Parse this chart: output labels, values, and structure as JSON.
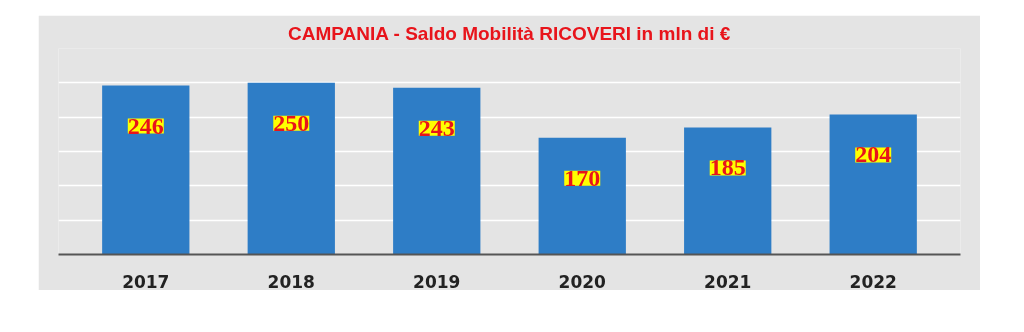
{
  "chart_data": {
    "type": "bar",
    "title": "CAMPANIA - Saldo Mobilità RICOVERI in mln di €",
    "categories": [
      "2017",
      "2018",
      "2019",
      "2020",
      "2021",
      "2022"
    ],
    "values": [
      246,
      250,
      243,
      170,
      185,
      204
    ],
    "color": "#2e7dc6",
    "ylim": [
      0,
      300
    ],
    "yticks": [
      {
        "value": 0,
        "label": null
      },
      {
        "value": 50,
        "label": null
      },
      {
        "value": 100,
        "label": null
      },
      {
        "value": 150,
        "label": null
      },
      {
        "value": 200,
        "label": null
      },
      {
        "value": 250,
        "label": null
      },
      {
        "value": 300,
        "label": null
      }
    ],
    "grid": "y",
    "tick_labels": "x",
    "data_labels": true
  }
}
